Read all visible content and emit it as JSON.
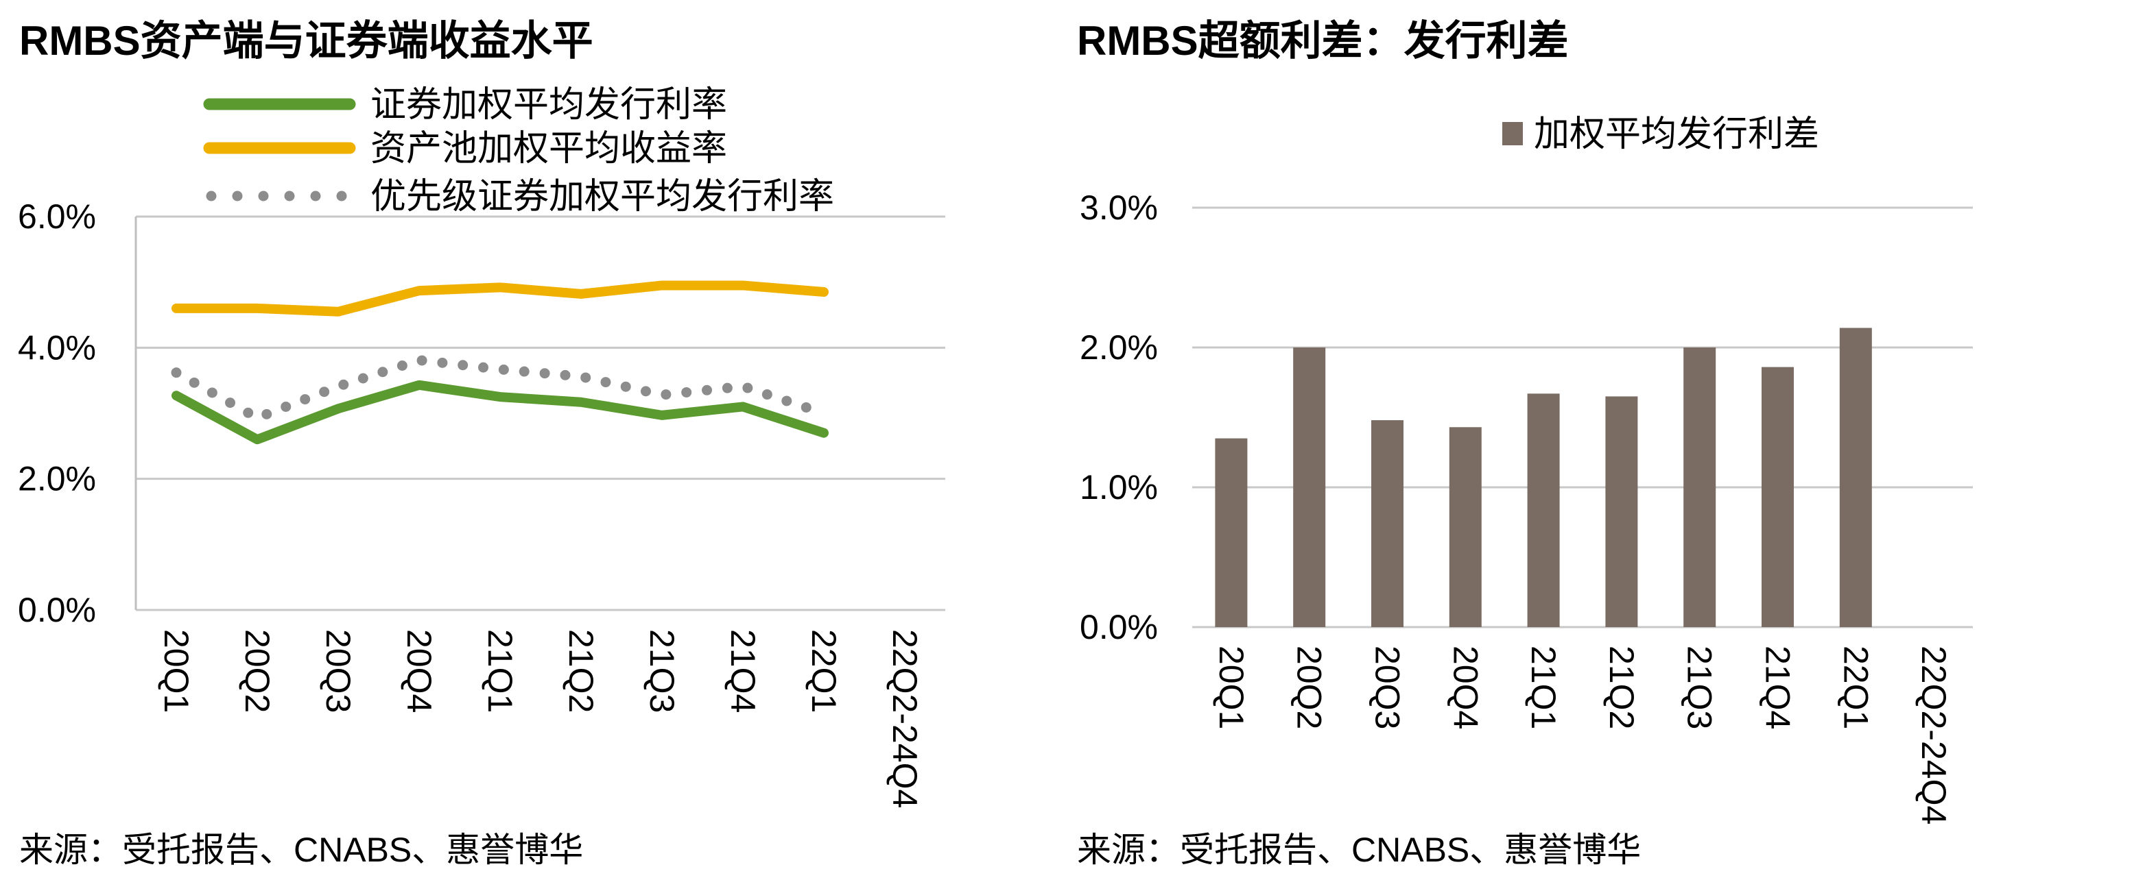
{
  "left_panel": {
    "title": "RMBS资产端与证券端收益水平",
    "source": "来源：受托报告、CNABS、惠誉博华"
  },
  "right_panel": {
    "title": "RMBS超额利差：发行利差",
    "source": "来源：受托报告、CNABS、惠誉博华"
  },
  "colors": {
    "green": "#5a9a2e",
    "yellow": "#f0b000",
    "gray_dots": "#8c8c8c",
    "bar": "#7a6c63",
    "grid": "#c8c8c8",
    "axis": "#bfbfbf"
  },
  "chart_data": [
    {
      "type": "line",
      "categories": [
        "20Q1",
        "20Q2",
        "20Q3",
        "20Q4",
        "21Q1",
        "21Q2",
        "21Q3",
        "21Q4",
        "22Q1",
        "22Q2-24Q4"
      ],
      "ylim": [
        0,
        6
      ],
      "yticks": [
        "0.0%",
        "2.0%",
        "4.0%",
        "6.0%"
      ],
      "ytick_values": [
        0,
        2,
        4,
        6
      ],
      "grid": true,
      "legend_position": "top",
      "series": [
        {
          "name": "证券加权平均发行利率",
          "style": "solid",
          "color": "#5a9a2e",
          "values": [
            3.27,
            2.6,
            3.07,
            3.43,
            3.25,
            3.17,
            2.97,
            3.1,
            2.7,
            null
          ]
        },
        {
          "name": "资产池加权平均收益率",
          "style": "solid",
          "color": "#f0b000",
          "values": [
            4.6,
            4.6,
            4.55,
            4.87,
            4.92,
            4.82,
            4.95,
            4.95,
            4.85,
            null
          ]
        },
        {
          "name": "优先级证券加权平均发行利率",
          "style": "dotted",
          "color": "#8c8c8c",
          "values": [
            3.62,
            2.93,
            3.41,
            3.81,
            3.67,
            3.56,
            3.28,
            3.41,
            3.0,
            null
          ]
        }
      ]
    },
    {
      "type": "bar",
      "categories": [
        "20Q1",
        "20Q2",
        "20Q3",
        "20Q4",
        "21Q1",
        "21Q2",
        "21Q3",
        "21Q4",
        "22Q1",
        "22Q2-24Q4"
      ],
      "ylim": [
        0,
        3
      ],
      "yticks": [
        "0.0%",
        "1.0%",
        "2.0%",
        "3.0%"
      ],
      "ytick_values": [
        0,
        1,
        2,
        3
      ],
      "grid": true,
      "legend_position": "top",
      "series": [
        {
          "name": "加权平均发行利差",
          "color": "#7a6c63",
          "values": [
            1.35,
            2.0,
            1.48,
            1.43,
            1.67,
            1.65,
            2.0,
            1.86,
            2.14,
            null
          ]
        }
      ]
    }
  ]
}
